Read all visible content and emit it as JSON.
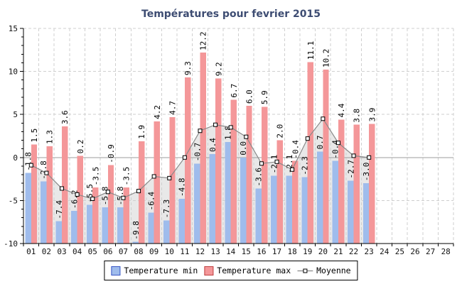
{
  "chart_data": {
    "type": "bar",
    "title": "Températures pour fevrier 2015",
    "x_tick_labels": [
      "01",
      "02",
      "03",
      "04",
      "05",
      "06",
      "07",
      "08",
      "09",
      "10",
      "11",
      "12",
      "13",
      "14",
      "15",
      "16",
      "17",
      "18",
      "19",
      "20",
      "21",
      "22",
      "23",
      "24",
      "25",
      "26",
      "27",
      "28"
    ],
    "categories": [
      "01",
      "02",
      "03",
      "04",
      "05",
      "06",
      "07",
      "08",
      "09",
      "10",
      "11",
      "12",
      "13",
      "14",
      "15",
      "16",
      "17",
      "18",
      "19",
      "20",
      "21",
      "22",
      "23"
    ],
    "ylim": [
      -10,
      15
    ],
    "y_major_ticks": [
      15,
      10,
      5,
      0,
      -5,
      -10
    ],
    "grid": true,
    "legend_position": "bottom",
    "bar_baseline": -10,
    "series": [
      {
        "name": "Temperature min",
        "type": "bar",
        "color": "#9fbcec",
        "swatch_border": "#3956c6",
        "values": [
          -1.8,
          -2.8,
          -7.4,
          -6.2,
          -5.5,
          -5.8,
          -5.8,
          -9.8,
          -6.4,
          -7.3,
          -4.8,
          -0.7,
          0.4,
          1.8,
          0.0,
          -3.6,
          -2.1,
          -2.1,
          -2.3,
          0.7,
          -0.4,
          -2.7,
          -3.0
        ]
      },
      {
        "name": "Temperature max",
        "type": "bar",
        "color": "#f49799",
        "swatch_border": "#bf4040",
        "values": [
          1.5,
          1.3,
          3.6,
          0.2,
          -3.5,
          -0.9,
          -3.5,
          1.9,
          4.2,
          4.7,
          9.3,
          12.2,
          9.2,
          6.7,
          6.0,
          5.9,
          2.0,
          -0.4,
          11.1,
          10.2,
          4.4,
          3.8,
          3.9
        ]
      },
      {
        "name": "Moyenne",
        "type": "line",
        "color": "#8a8a8a",
        "area_color": "#e8e8e8",
        "marker": "square",
        "values": [
          -0.9,
          -1.8,
          -3.6,
          -4.3,
          -4.8,
          -4.0,
          -4.7,
          -3.9,
          -2.2,
          -2.4,
          0.0,
          3.1,
          3.8,
          3.5,
          2.4,
          -0.7,
          -0.5,
          -1.4,
          2.2,
          4.5,
          1.7,
          0.2,
          0.0
        ]
      }
    ],
    "colors": {
      "zero_line": "#9e9e9e",
      "gridline": "#cfcfcf",
      "axis": "#000000",
      "title": "#3d4c72"
    }
  }
}
